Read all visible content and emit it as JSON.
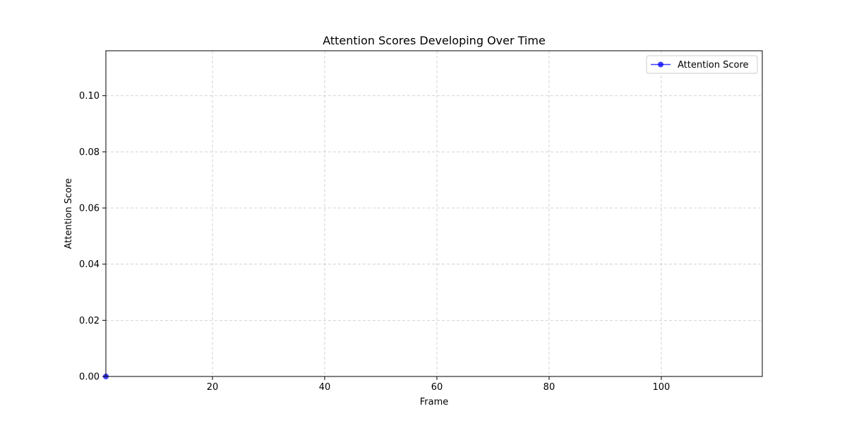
{
  "chart_data": {
    "type": "line",
    "title": "Attention Scores Developing Over Time",
    "xlabel": "Frame",
    "ylabel": "Attention Score",
    "xlim": [
      1,
      118
    ],
    "ylim": [
      0,
      0.116
    ],
    "xticks": [
      20,
      40,
      60,
      80,
      100
    ],
    "yticks": [
      0.0,
      0.02,
      0.04,
      0.06,
      0.08,
      0.1
    ],
    "xtick_labels": [
      "20",
      "40",
      "60",
      "80",
      "100"
    ],
    "ytick_labels": [
      "0.00",
      "0.02",
      "0.04",
      "0.06",
      "0.08",
      "0.10"
    ],
    "grid": true,
    "legend_position": "top-right",
    "series": [
      {
        "name": "Attention Score",
        "color": "#0000ff",
        "marker": "circle",
        "x": [
          1
        ],
        "y": [
          0.0
        ]
      }
    ]
  }
}
